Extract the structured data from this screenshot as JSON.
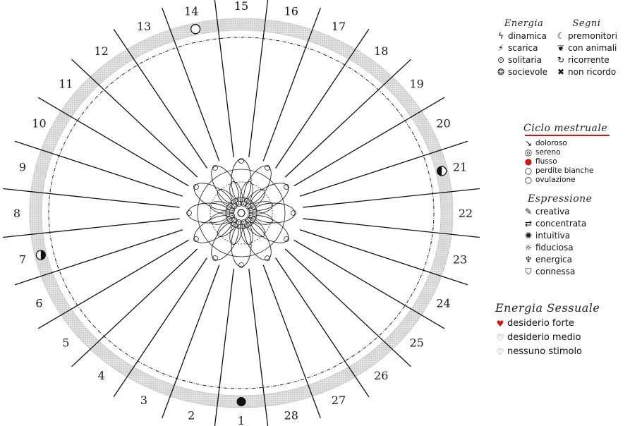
{
  "wheel": {
    "day_labels": [
      "1",
      "2",
      "3",
      "4",
      "5",
      "6",
      "7",
      "8",
      "9",
      "10",
      "11",
      "12",
      "13",
      "14",
      "15",
      "16",
      "17",
      "18",
      "19",
      "20",
      "21",
      "22",
      "23",
      "24",
      "25",
      "26",
      "27",
      "28"
    ],
    "moon_phases": [
      {
        "day": "1",
        "phase": "new-moon"
      },
      {
        "day": "7",
        "phase": "first-quarter"
      },
      {
        "day": "14",
        "phase": "full-moon"
      },
      {
        "day": "21",
        "phase": "last-quarter"
      }
    ],
    "colors": {
      "ring": "#d9d9d9",
      "lines": "#111111",
      "moon": "#111111"
    }
  },
  "legend": {
    "energia": {
      "title": "Energia",
      "items": [
        {
          "icon": "lightning-icon",
          "glyph": "ϟ",
          "label": "dinamica"
        },
        {
          "icon": "discharge-icon",
          "glyph": "⚡",
          "label": "scarica"
        },
        {
          "icon": "dot-circle-icon",
          "glyph": "⊙",
          "label": "solitaria"
        },
        {
          "icon": "group-icon",
          "glyph": "❂",
          "label": "socievole"
        }
      ]
    },
    "segni": {
      "title": "Segni",
      "items": [
        {
          "icon": "crescent-icon",
          "glyph": "☾",
          "label": "premonitori"
        },
        {
          "icon": "paw-icon",
          "glyph": "❦",
          "label": "con animali"
        },
        {
          "icon": "loop-icon",
          "glyph": "↻",
          "label": "ricorrente"
        },
        {
          "icon": "cross-icon",
          "glyph": "✖",
          "label": "non ricordo"
        }
      ]
    },
    "ciclo": {
      "title": "Ciclo mestruale",
      "accent": "#d01515",
      "items": [
        {
          "icon": "arrow-down-icon",
          "glyph": "↘",
          "label": "doloroso"
        },
        {
          "icon": "spiral-icon",
          "glyph": "◎",
          "label": "sereno"
        },
        {
          "icon": "drop-red-icon",
          "glyph": "●",
          "label": "flusso",
          "color": "#d01515"
        },
        {
          "icon": "drop-outline-icon",
          "glyph": "○",
          "label": "perdite bianche"
        },
        {
          "icon": "circle-icon",
          "glyph": "○",
          "label": "ovulazione"
        }
      ]
    },
    "espressione": {
      "title": "Espressione",
      "items": [
        {
          "icon": "pencil-icon",
          "glyph": "✎",
          "label": "creativa"
        },
        {
          "icon": "arrows-icon",
          "glyph": "⇄",
          "label": "concentrata"
        },
        {
          "icon": "bulb-icon",
          "glyph": "✺",
          "label": "intuitiva"
        },
        {
          "icon": "sun-icon",
          "glyph": "☼",
          "label": "fiduciosa"
        },
        {
          "icon": "figure-icon",
          "glyph": "♆",
          "label": "energica"
        },
        {
          "icon": "cup-icon",
          "glyph": "⛉",
          "label": "connessa"
        }
      ]
    },
    "sessuale": {
      "title": "Energia Sessuale",
      "items": [
        {
          "icon": "heart-filled-icon",
          "glyph": "♥",
          "label": "desiderio forte",
          "color": "#d01515"
        },
        {
          "icon": "heart-outline-icon",
          "glyph": "♡",
          "label": "desiderio medio",
          "color": "#d01515"
        },
        {
          "icon": "heart-crossed-icon",
          "glyph": "♡",
          "label": "nessuno stimolo",
          "color": "#444444"
        }
      ]
    }
  }
}
